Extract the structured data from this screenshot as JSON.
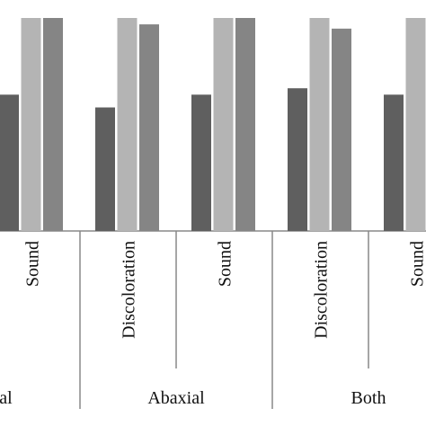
{
  "chart_data": {
    "type": "bar",
    "categories": [
      "Sound",
      "Discoloration",
      "Sound",
      "Discoloration",
      "Sound"
    ],
    "groups": [
      "Adaxial",
      "Abaxial",
      "Both"
    ],
    "series": [
      {
        "color": "#5f5f5f",
        "values": [
          64,
          58,
          64,
          67,
          64
        ]
      },
      {
        "color": "#b4b4b4",
        "values": [
          100,
          100,
          100,
          100,
          100
        ]
      },
      {
        "color": "#858585",
        "values": [
          100,
          97,
          100,
          95,
          null
        ]
      }
    ],
    "ylim": [
      0,
      100
    ]
  }
}
